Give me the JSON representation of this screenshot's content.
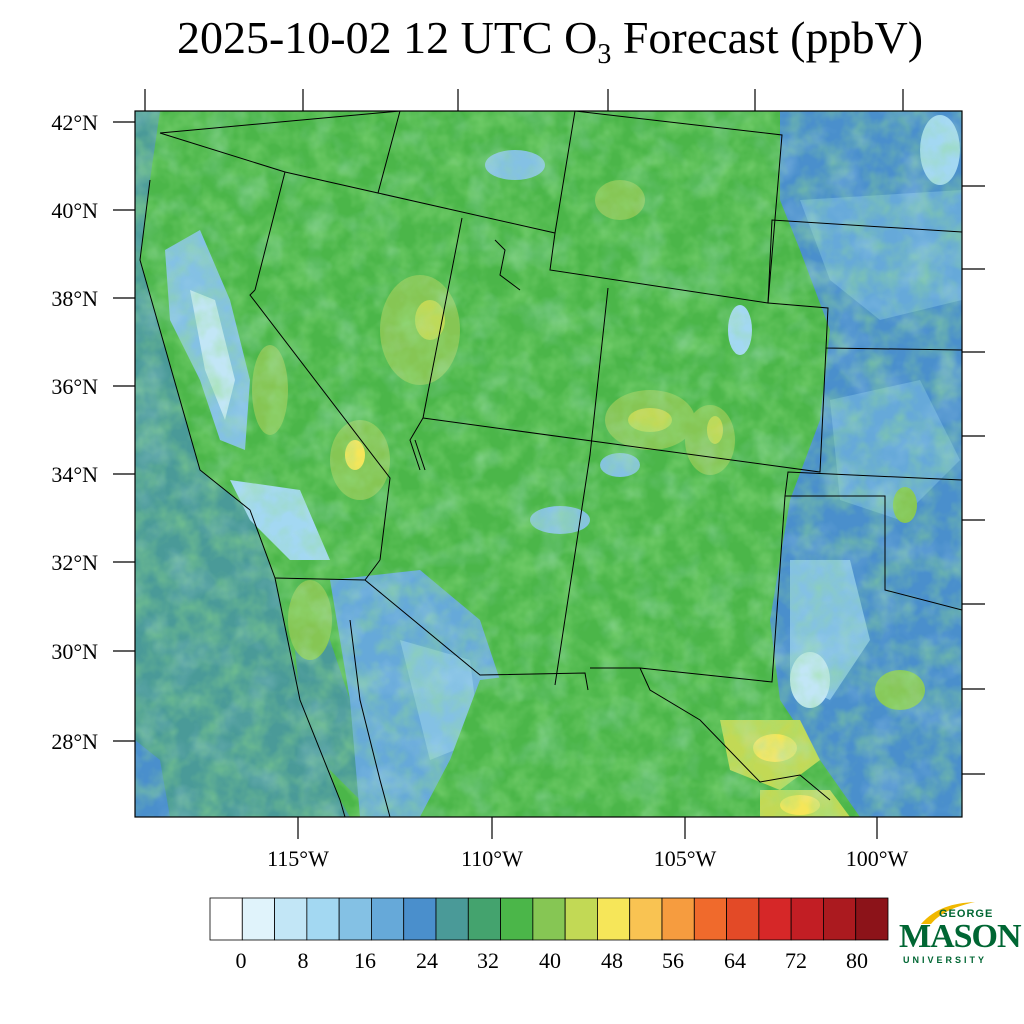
{
  "title": {
    "prefix": "2025-10-02 12 UTC O",
    "subscript": "3",
    "suffix": " Forecast (ppbV)"
  },
  "map": {
    "lat_labels": [
      "42°N",
      "40°N",
      "38°N",
      "36°N",
      "34°N",
      "32°N",
      "30°N",
      "28°N"
    ],
    "lon_labels": [
      "115°W",
      "110°W",
      "105°W",
      "100°W"
    ],
    "region": "Southwestern United States and northern Mexico",
    "legend_ticks": [
      "0",
      "8",
      "16",
      "24",
      "32",
      "40",
      "48",
      "56",
      "64",
      "72",
      "80"
    ],
    "legend_colors": [
      "#ffffff",
      "#e0f3fb",
      "#c2e6f6",
      "#a3d8f2",
      "#84c1e4",
      "#66a9d9",
      "#4a8fcc",
      "#4a9a98",
      "#44a36e",
      "#4bb649",
      "#86c654",
      "#c2d955",
      "#f6e659",
      "#f9c352",
      "#f69c3f",
      "#f06a2c",
      "#e34a27",
      "#d62728",
      "#c21e24",
      "#ab1a1f",
      "#8c1319"
    ]
  },
  "logo": {
    "line1": "GEORGE",
    "line2": "MASON",
    "line3": "UNIVERSITY"
  }
}
